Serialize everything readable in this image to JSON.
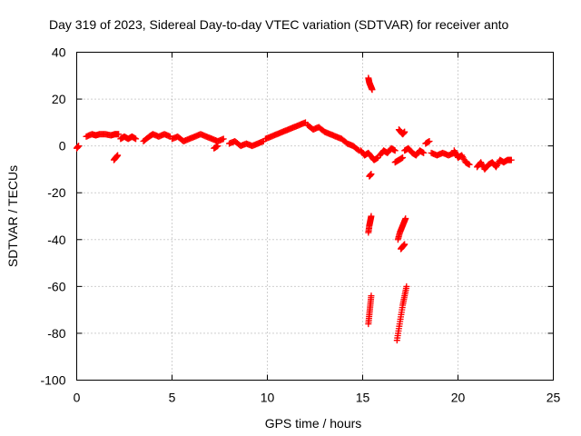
{
  "chart_data": {
    "type": "scatter",
    "title": "Day 319 of 2023, Sidereal Day-to-day VTEC variation (SDTVAR) for receiver anto",
    "xlabel": "GPS time / hours",
    "ylabel": "SDTVAR / TECUs",
    "xlim": [
      0,
      25
    ],
    "ylim": [
      -100,
      40
    ],
    "xticks": [
      0,
      5,
      10,
      15,
      20,
      25
    ],
    "yticks": [
      -100,
      -80,
      -60,
      -40,
      -20,
      0,
      20,
      40
    ],
    "grid": true,
    "marker": "+",
    "marker_color": "#ff0000",
    "series": [
      {
        "name": "SDTVAR",
        "segments": [
          {
            "x": [
              0.0,
              0.1
            ],
            "y": [
              -1,
              0
            ]
          },
          {
            "x": [
              0.5,
              0.8,
              1.0,
              1.2,
              1.5,
              1.8,
              2.0,
              2.2
            ],
            "y": [
              4,
              5,
              4.5,
              5,
              5,
              4.5,
              5,
              5
            ]
          },
          {
            "x": [
              2.3,
              2.5,
              2.7,
              2.9,
              3.1
            ],
            "y": [
              3,
              4,
              3,
              4,
              3
            ]
          },
          {
            "x": [
              1.95,
              2.05,
              2.15
            ],
            "y": [
              -6,
              -5,
              -4
            ]
          },
          {
            "x": [
              3.5,
              3.8,
              4.0,
              4.3,
              4.6,
              4.9
            ],
            "y": [
              2,
              4,
              5,
              4,
              5,
              4
            ]
          },
          {
            "x": [
              5.0,
              5.3,
              5.6,
              5.9,
              6.2,
              6.5,
              6.8,
              7.1,
              7.4,
              7.7
            ],
            "y": [
              3,
              4,
              2,
              3,
              4,
              5,
              4,
              3,
              2,
              3
            ]
          },
          {
            "x": [
              7.2,
              7.4
            ],
            "y": [
              -1,
              0
            ]
          },
          {
            "x": [
              8.0,
              8.3,
              8.6,
              8.9,
              9.2,
              9.5,
              9.8
            ],
            "y": [
              1,
              2,
              0,
              1,
              0,
              1,
              2
            ]
          },
          {
            "x": [
              9.9,
              10.2,
              10.5,
              10.8,
              11.1,
              11.4,
              11.7,
              12.0
            ],
            "y": [
              3,
              4,
              5,
              6,
              7,
              8,
              9,
              10
            ]
          },
          {
            "x": [
              12.1,
              12.4,
              12.7,
              13.0,
              13.3,
              13.6,
              13.9,
              14.2,
              14.5,
              14.8
            ],
            "y": [
              9,
              7,
              8,
              6,
              5,
              4,
              3,
              1,
              0,
              -2
            ]
          },
          {
            "x": [
              14.9,
              15.1,
              15.3,
              15.5,
              15.6,
              15.8
            ],
            "y": [
              -2,
              -4,
              -3,
              -5,
              -6,
              -5
            ]
          },
          {
            "x": [
              15.3,
              15.35,
              15.4,
              15.45,
              15.5
            ],
            "y": [
              29,
              27,
              26,
              25,
              24
            ]
          },
          {
            "x": [
              15.35,
              15.45
            ],
            "y": [
              -13,
              -12
            ]
          },
          {
            "x": [
              15.3,
              15.35,
              15.4,
              15.45
            ],
            "y": [
              -37,
              -34,
              -32,
              -30
            ]
          },
          {
            "x": [
              15.3,
              15.35,
              15.4,
              15.45
            ],
            "y": [
              -76,
              -72,
              -68,
              -64
            ]
          },
          {
            "x": [
              15.9,
              16.1,
              16.3,
              16.5,
              16.7
            ],
            "y": [
              -4,
              -2,
              -3,
              -1,
              -2
            ]
          },
          {
            "x": [
              16.9,
              17.0,
              17.1,
              17.2
            ],
            "y": [
              7,
              6,
              5,
              6
            ]
          },
          {
            "x": [
              16.7,
              16.9,
              17.1
            ],
            "y": [
              -7,
              -6,
              -5
            ]
          },
          {
            "x": [
              16.85,
              16.95,
              17.05,
              17.15,
              17.25
            ],
            "y": [
              -40,
              -37,
              -35,
              -33,
              -31
            ]
          },
          {
            "x": [
              17.0,
              17.1,
              17.2
            ],
            "y": [
              -44,
              -43,
              -42
            ]
          },
          {
            "x": [
              16.8,
              16.9,
              17.0,
              17.1,
              17.2,
              17.3
            ],
            "y": [
              -83,
              -78,
              -73,
              -68,
              -64,
              -60
            ]
          },
          {
            "x": [
              17.2,
              17.4,
              17.6,
              17.8,
              18.0,
              18.2
            ],
            "y": [
              -2,
              -1,
              -3,
              -4,
              -2,
              -3
            ]
          },
          {
            "x": [
              18.3,
              18.5
            ],
            "y": [
              1,
              2
            ]
          },
          {
            "x": [
              18.6,
              18.9,
              19.2,
              19.5,
              19.8,
              20.0
            ],
            "y": [
              -3,
              -4,
              -3,
              -4,
              -3,
              -4
            ]
          },
          {
            "x": [
              19.8,
              20.0,
              20.2,
              20.4,
              20.6
            ],
            "y": [
              -2,
              -5,
              -4,
              -7,
              -8
            ]
          },
          {
            "x": [
              21.0,
              21.2,
              21.4,
              21.6,
              21.8,
              22.0,
              22.2,
              22.4,
              22.6,
              22.8
            ],
            "y": [
              -9,
              -7,
              -10,
              -8,
              -7,
              -9,
              -6,
              -7,
              -6,
              -6
            ]
          }
        ]
      }
    ]
  }
}
